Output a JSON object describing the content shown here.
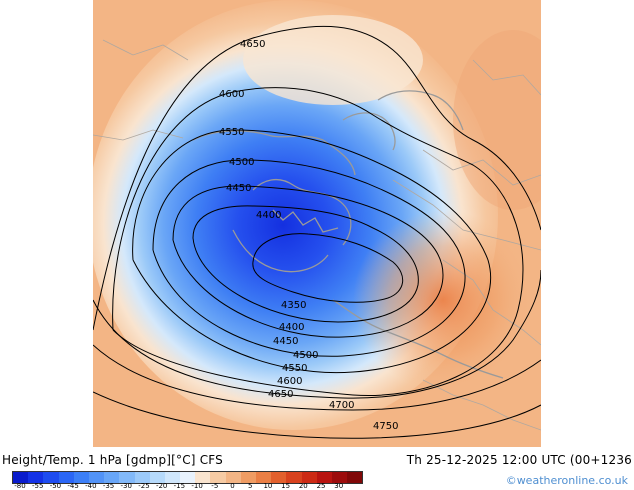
{
  "map": {
    "contour_labels": [
      "4650",
      "4600",
      "4550",
      "4500",
      "4450",
      "4400",
      "4350",
      "4400",
      "4450",
      "4500",
      "4550",
      "4600",
      "4650",
      "4700",
      "4750"
    ]
  },
  "footer": {
    "title": "Height/Temp. 1 hPa [gdmp][°C] CFS",
    "datetime": "Th 25-12-2025 12:00 UTC (00+1236",
    "credit": "©weatheronline.co.uk"
  },
  "legend": {
    "ticks": [
      "-80",
      "-55",
      "-50",
      "-45",
      "-40",
      "-35",
      "-30",
      "-25",
      "-20",
      "-15",
      "-10",
      "-5",
      "0",
      "5",
      "10",
      "15",
      "20",
      "25",
      "30"
    ],
    "colors": [
      "#0a1ccc",
      "#1432e6",
      "#1e4cf0",
      "#2b66f5",
      "#3c7ff7",
      "#5293f7",
      "#68a6f8",
      "#82b9f9",
      "#9ccafa",
      "#b6dafb",
      "#d0e7fc",
      "#e8f2fd",
      "#f9e4cf",
      "#f6cba4",
      "#f3b585",
      "#ef9c63",
      "#ea7f45",
      "#e2602d",
      "#d8421e",
      "#cc2a14",
      "#b81410",
      "#9c0c0c",
      "#800808"
    ]
  }
}
